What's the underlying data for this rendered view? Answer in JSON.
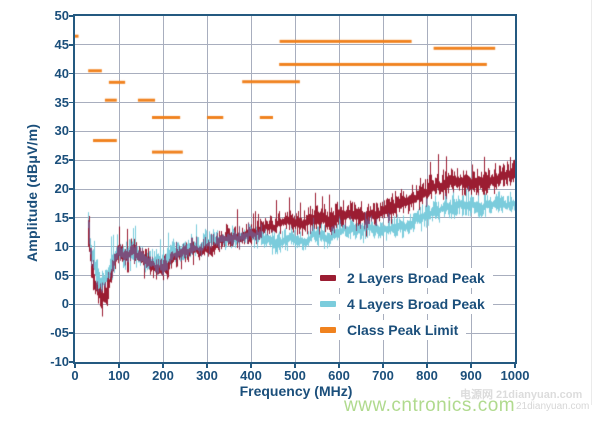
{
  "chart_data": {
    "type": "line",
    "title": "",
    "xlabel": "Frequency (MHz)",
    "ylabel": "Amplitude (dBμV/m)",
    "xlim": [
      0,
      1000
    ],
    "ylim": [
      -10,
      50
    ],
    "grid": true,
    "legend_position": "inside-bottom-right",
    "axis_color": "#245980",
    "grid_color": "#a8aebe",
    "tick_label_color": "#1b4f7b",
    "overlap_color": "#7b4f7c",
    "x_tick_values": [
      0,
      100,
      200,
      300,
      400,
      500,
      600,
      700,
      800,
      900,
      1000
    ],
    "x_tick_labels": [
      "0",
      "100",
      "200",
      "300",
      "400",
      "500",
      "600",
      "700",
      "800",
      "900",
      "1000"
    ],
    "y_tick_values": [
      50,
      45,
      40,
      35,
      30,
      25,
      20,
      15,
      10,
      5,
      0,
      -5,
      -10
    ],
    "y_tick_labels": [
      "50",
      "45",
      "40",
      "35",
      "30",
      "25",
      "20",
      "15",
      "10",
      "05",
      "0",
      "-05",
      "-10"
    ],
    "series": [
      {
        "name": "2 Layers Broad Peak",
        "color": "#9b1d32",
        "style": "noisy-band",
        "points": [
          [
            30,
            13
          ],
          [
            33,
            9
          ],
          [
            38,
            6.5
          ],
          [
            45,
            3.5
          ],
          [
            52,
            2
          ],
          [
            60,
            1
          ],
          [
            67,
            1.2
          ],
          [
            75,
            3
          ],
          [
            82,
            5
          ],
          [
            90,
            7.5
          ],
          [
            97,
            9
          ],
          [
            105,
            8.5
          ],
          [
            118,
            8
          ],
          [
            130,
            8.3
          ],
          [
            145,
            7.3
          ],
          [
            160,
            6.6
          ],
          [
            180,
            6.2
          ],
          [
            200,
            6.4
          ],
          [
            212,
            6.8
          ],
          [
            222,
            8.2
          ],
          [
            235,
            9.4
          ],
          [
            255,
            9.9
          ],
          [
            280,
            10.2
          ],
          [
            300,
            10.5
          ],
          [
            325,
            11
          ],
          [
            350,
            11.8
          ],
          [
            375,
            12.3
          ],
          [
            400,
            12.8
          ],
          [
            430,
            13.2
          ],
          [
            460,
            13.6
          ],
          [
            500,
            14
          ],
          [
            550,
            14.6
          ],
          [
            600,
            15
          ],
          [
            650,
            15.5
          ],
          [
            700,
            16.1
          ],
          [
            750,
            17.4
          ],
          [
            800,
            19.3
          ],
          [
            850,
            20.6
          ],
          [
            900,
            21.3
          ],
          [
            950,
            22
          ],
          [
            1000,
            23
          ]
        ]
      },
      {
        "name": "4 Layers Broad Peak",
        "color": "#7bccdc",
        "style": "noisy-band",
        "points": [
          [
            30,
            14
          ],
          [
            33,
            11
          ],
          [
            38,
            8.5
          ],
          [
            45,
            6
          ],
          [
            52,
            4.8
          ],
          [
            60,
            3.8
          ],
          [
            67,
            4
          ],
          [
            75,
            5.2
          ],
          [
            82,
            7
          ],
          [
            90,
            8.8
          ],
          [
            97,
            9.8
          ],
          [
            105,
            9.2
          ],
          [
            118,
            9.4
          ],
          [
            130,
            9.4
          ],
          [
            145,
            8.8
          ],
          [
            160,
            8.4
          ],
          [
            180,
            8.1
          ],
          [
            200,
            7.9
          ],
          [
            212,
            8
          ],
          [
            222,
            8.6
          ],
          [
            235,
            9.3
          ],
          [
            255,
            9.7
          ],
          [
            280,
            10
          ],
          [
            300,
            10.4
          ],
          [
            325,
            10.9
          ],
          [
            350,
            11.2
          ],
          [
            375,
            11.5
          ],
          [
            400,
            11.7
          ],
          [
            430,
            11.8
          ],
          [
            460,
            11.6
          ],
          [
            500,
            11.5
          ],
          [
            550,
            12
          ],
          [
            600,
            12.5
          ],
          [
            650,
            13
          ],
          [
            700,
            13.3
          ],
          [
            750,
            14.1
          ],
          [
            800,
            15.3
          ],
          [
            850,
            16.4
          ],
          [
            900,
            16.8
          ],
          [
            950,
            17
          ],
          [
            1000,
            17.3
          ]
        ]
      },
      {
        "name": "Class Peak Limit",
        "color": "#f0821f",
        "style": "segments",
        "segments": [
          [
            0,
            8,
            46.5
          ],
          [
            30,
            61,
            40.5
          ],
          [
            77,
            114,
            38.5
          ],
          [
            68,
            95,
            35.4
          ],
          [
            143,
            182,
            35.4
          ],
          [
            41,
            95,
            28.4
          ],
          [
            175,
            239,
            32.4
          ],
          [
            300,
            337,
            32.4
          ],
          [
            420,
            450,
            32.4
          ],
          [
            175,
            245,
            26.4
          ],
          [
            380,
            511,
            38.6
          ],
          [
            465,
            765,
            45.6
          ],
          [
            464,
            936,
            41.6
          ],
          [
            815,
            955,
            44.4
          ]
        ]
      }
    ]
  },
  "watermarks": {
    "gray_line1": "电源网 21dianyuan.com",
    "gray_line2": "21dianyuan.com",
    "green": "www.cntronics.com"
  }
}
